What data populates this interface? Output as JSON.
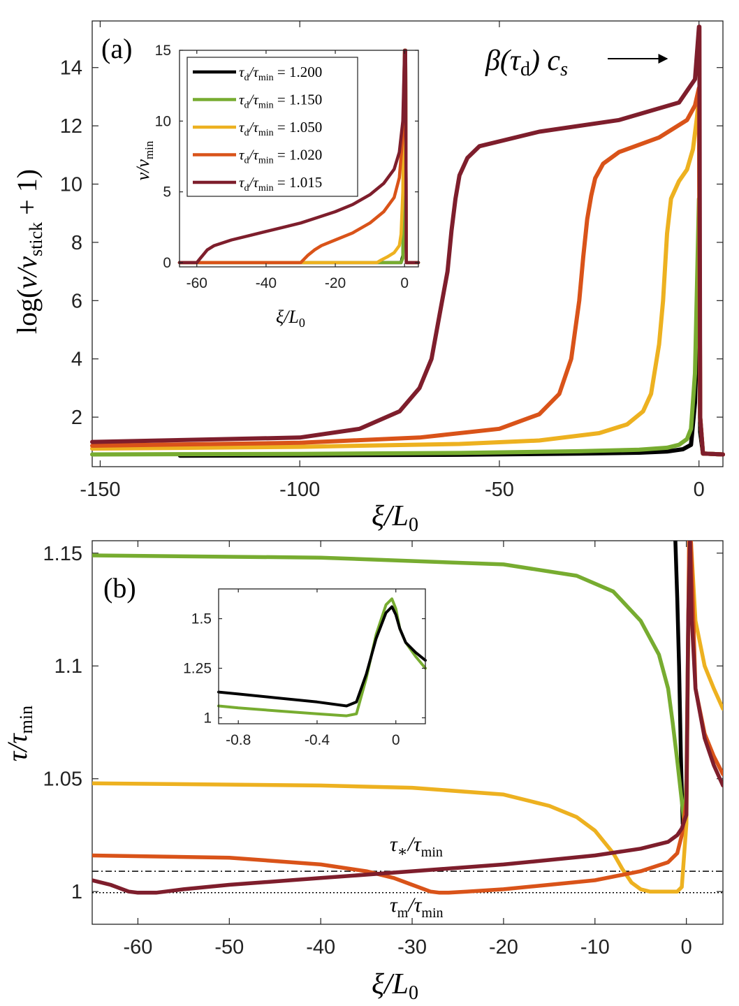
{
  "colors": {
    "t1200": "#000000",
    "t1150": "#77ac30",
    "t1050": "#edb120",
    "t1020": "#d95319",
    "t1015": "#7e1e2c",
    "axis": "#222222"
  },
  "chart_data": [
    {
      "id": "panel-a",
      "type": "line",
      "panel_label": "(a)",
      "xlabel": "ξ/L₀",
      "ylabel": "log(v/v_stick + 1)",
      "xlim": [
        -152,
        6
      ],
      "ylim": [
        0.3,
        15.6
      ],
      "xticks": [
        -150,
        -100,
        -50,
        0
      ],
      "xtick_labels": [
        "-150",
        "-100",
        "-50",
        "0"
      ],
      "yticks": [
        2,
        4,
        6,
        8,
        10,
        12,
        14
      ],
      "ytick_labels": [
        "2",
        "4",
        "6",
        "8",
        "10",
        "12",
        "14"
      ],
      "annotation": "β(τd) cs →",
      "series": [
        {
          "name": "τd/τmin = 1.200",
          "color_key": "t1200",
          "x": [
            -130,
            -100,
            -60,
            -30,
            -15,
            -8,
            -4,
            -2,
            -1,
            -0.5,
            0,
            0.3,
            1,
            6
          ],
          "y": [
            0.68,
            0.69,
            0.71,
            0.75,
            0.78,
            0.82,
            0.9,
            1.05,
            2.5,
            5,
            7.5,
            1.5,
            0.75,
            0.72
          ]
        },
        {
          "name": "τd/τmin = 1.150",
          "color_key": "t1150",
          "x": [
            -152,
            -100,
            -60,
            -30,
            -15,
            -8,
            -5,
            -3,
            -2,
            -1,
            -0.5,
            0,
            0.3,
            1,
            6
          ],
          "y": [
            0.72,
            0.74,
            0.77,
            0.83,
            0.88,
            0.95,
            1.05,
            1.25,
            1.6,
            3.5,
            6.5,
            9.5,
            2,
            0.75,
            0.72
          ]
        },
        {
          "name": "τd/τmin = 1.050",
          "color_key": "t1050",
          "x": [
            -152,
            -100,
            -60,
            -40,
            -25,
            -18,
            -14,
            -12,
            -10,
            -9,
            -8,
            -7,
            -5,
            -3,
            -1.5,
            -0.5,
            0,
            0.3,
            1,
            6
          ],
          "y": [
            0.92,
            0.98,
            1.08,
            1.2,
            1.45,
            1.75,
            2.2,
            2.8,
            4.5,
            6,
            8.3,
            9.5,
            10.1,
            10.5,
            11.2,
            12.3,
            13.0,
            2,
            0.75,
            0.72
          ]
        },
        {
          "name": "τd/τmin = 1.020",
          "color_key": "t1020",
          "x": [
            -152,
            -100,
            -70,
            -50,
            -40,
            -35,
            -32,
            -30,
            -29,
            -28,
            -27,
            -26,
            -24,
            -20,
            -10,
            -3,
            -1,
            0,
            0.3,
            1,
            6
          ],
          "y": [
            1.02,
            1.12,
            1.3,
            1.6,
            2.1,
            2.8,
            4,
            6,
            7.5,
            8.8,
            9.6,
            10.2,
            10.7,
            11.1,
            11.6,
            12.2,
            12.7,
            13.3,
            2,
            0.75,
            0.72
          ]
        },
        {
          "name": "τd/τmin = 1.015",
          "color_key": "t1015",
          "x": [
            -152,
            -100,
            -85,
            -75,
            -70,
            -67,
            -65,
            -63,
            -62,
            -61,
            -60,
            -58,
            -55,
            -40,
            -20,
            -5,
            -1,
            0,
            0.1,
            0.3,
            1,
            6
          ],
          "y": [
            1.15,
            1.3,
            1.6,
            2.2,
            3,
            4,
            5.5,
            7,
            8.4,
            9.5,
            10.3,
            10.9,
            11.3,
            11.8,
            12.2,
            12.8,
            13.6,
            15.4,
            15.4,
            2,
            0.75,
            0.72
          ]
        }
      ]
    },
    {
      "id": "panel-a-inset",
      "type": "line",
      "xlabel": "ξ/L₀",
      "ylabel": "v/v_min",
      "xlim": [
        -65,
        4
      ],
      "ylim": [
        -0.3,
        15
      ],
      "xticks": [
        -60,
        -40,
        -20,
        0
      ],
      "xtick_labels": [
        "-60",
        "-40",
        "-20",
        "0"
      ],
      "yticks": [
        0,
        5,
        10,
        15
      ],
      "ytick_labels": [
        "0",
        "5",
        "10",
        "15"
      ],
      "legend_position": "top-left",
      "legend": [
        "τd/τmin = 1.200",
        "τd/τmin = 1.150",
        "τd/τmin = 1.050",
        "τd/τmin = 1.020",
        "τd/τmin = 1.015"
      ],
      "series": [
        {
          "name": "τd/τmin = 1.200",
          "color_key": "t1200",
          "x": [
            -65,
            -1,
            -0.5,
            -0.2,
            0,
            0.3,
            0.5,
            4
          ],
          "y": [
            0,
            0,
            0.5,
            3,
            15,
            15,
            0,
            0
          ]
        },
        {
          "name": "τd/τmin = 1.150",
          "color_key": "t1150",
          "x": [
            -65,
            -1,
            -0.5,
            0,
            0.3,
            0.5,
            4
          ],
          "y": [
            0,
            0,
            0.3,
            15,
            15,
            0,
            0
          ]
        },
        {
          "name": "τd/τmin = 1.050",
          "color_key": "t1050",
          "x": [
            -65,
            -8,
            -7,
            -5,
            -3,
            -1.5,
            -1,
            -0.5,
            0,
            0.3,
            0.5,
            4
          ],
          "y": [
            0,
            0,
            0.15,
            0.4,
            0.7,
            1.2,
            2,
            5,
            15,
            15,
            0,
            0
          ]
        },
        {
          "name": "τd/τmin = 1.020",
          "color_key": "t1020",
          "x": [
            -65,
            -30,
            -28,
            -26,
            -24,
            -20,
            -15,
            -10,
            -6,
            -3,
            -1.5,
            -0.5,
            0,
            0.3,
            0.5,
            4
          ],
          "y": [
            0,
            0,
            0.5,
            0.9,
            1.2,
            1.6,
            2.1,
            2.8,
            3.6,
            4.6,
            6,
            9,
            15,
            15,
            0,
            0
          ]
        },
        {
          "name": "τd/τmin = 1.015",
          "color_key": "t1015",
          "x": [
            -65,
            -60,
            -59,
            -58,
            -57,
            -55,
            -50,
            -45,
            -40,
            -35,
            -30,
            -25,
            -20,
            -15,
            -10,
            -6,
            -3,
            -1.5,
            -0.5,
            0,
            0.3,
            0.5,
            4
          ],
          "y": [
            0,
            0,
            0.3,
            0.6,
            0.9,
            1.2,
            1.6,
            1.9,
            2.2,
            2.5,
            2.8,
            3.2,
            3.6,
            4.1,
            4.8,
            5.6,
            6.6,
            7.8,
            10,
            15,
            15,
            0,
            0
          ]
        }
      ]
    },
    {
      "id": "panel-b",
      "type": "line",
      "panel_label": "(b)",
      "xlabel": "ξ/L₀",
      "ylabel": "τ/τmin",
      "xlim": [
        -65,
        4
      ],
      "ylim": [
        0.9855,
        1.1555
      ],
      "xticks": [
        -60,
        -50,
        -40,
        -30,
        -20,
        -10,
        0
      ],
      "xtick_labels": [
        "-60",
        "-50",
        "-40",
        "-30",
        "-20",
        "-10",
        "0"
      ],
      "yticks": [
        1,
        1.05,
        1.1,
        1.15
      ],
      "ytick_labels": [
        "1",
        "1.05",
        "1.1",
        "1.15"
      ],
      "reference_lines": [
        {
          "label": "τ*/τmin",
          "y": 1.009,
          "style": "dash-dot"
        },
        {
          "label": "τm/τmin",
          "y": 0.9995,
          "style": "dotted"
        }
      ],
      "series": [
        {
          "name": "τd/τmin = 1.200",
          "color_key": "t1200",
          "x": [
            -1.2,
            -1,
            -0.8,
            -0.6,
            -0.4
          ],
          "y": [
            1.1555,
            1.13,
            1.1,
            1.06,
            1.03
          ]
        },
        {
          "name": "τd/τmin = 1.150",
          "color_key": "t1150",
          "x": [
            -65,
            -40,
            -20,
            -12,
            -8,
            -5,
            -3,
            -2,
            -1.5,
            -1,
            -0.5,
            -0.2,
            0,
            0.2,
            0.4
          ],
          "y": [
            1.149,
            1.148,
            1.145,
            1.14,
            1.133,
            1.12,
            1.105,
            1.09,
            1.075,
            1.058,
            1.04,
            1.03,
            1.05,
            1.12,
            1.1555
          ]
        },
        {
          "name": "τd/τmin = 1.050",
          "color_key": "t1050",
          "x": [
            -65,
            -40,
            -30,
            -20,
            -15,
            -12,
            -10,
            -8,
            -7,
            -6,
            -5,
            -4,
            -3,
            -2,
            -1,
            -0.5,
            0,
            0.3,
            0.5,
            1,
            2,
            3,
            4
          ],
          "y": [
            1.048,
            1.047,
            1.046,
            1.043,
            1.038,
            1.033,
            1.027,
            1.017,
            1.01,
            1.004,
            1.001,
            1.0,
            1.0,
            1.0,
            1.0,
            1.002,
            1.03,
            1.1555,
            1.1555,
            1.12,
            1.1,
            1.09,
            1.081
          ]
        },
        {
          "name": "τd/τmin = 1.020",
          "color_key": "t1020",
          "x": [
            -65,
            -50,
            -40,
            -35,
            -32,
            -30,
            -28,
            -27,
            -26,
            -24,
            -20,
            -15,
            -10,
            -5,
            -2,
            -1,
            -0.5,
            0,
            0.3,
            0.5,
            1,
            2,
            3,
            4
          ],
          "y": [
            1.016,
            1.015,
            1.012,
            1.009,
            1.006,
            1.003,
            1.0,
            0.9995,
            0.9995,
            1.0,
            1.001,
            1.003,
            1.005,
            1.009,
            1.013,
            1.017,
            1.025,
            1.04,
            1.1555,
            1.1555,
            1.09,
            1.07,
            1.06,
            1.052
          ]
        },
        {
          "name": "τd/τmin = 1.015",
          "color_key": "t1015",
          "x": [
            -65,
            -63,
            -61,
            -60,
            -59,
            -58,
            -57,
            -55,
            -50,
            -40,
            -30,
            -20,
            -10,
            -5,
            -2,
            -1,
            -0.5,
            0,
            0.2,
            0.4,
            0.6,
            1,
            2,
            3,
            4
          ],
          "y": [
            1.005,
            1.003,
            1.0,
            0.9995,
            0.9995,
            0.9995,
            1.0,
            1.001,
            1.003,
            1.006,
            1.009,
            1.012,
            1.016,
            1.019,
            1.022,
            1.025,
            1.028,
            1.034,
            1.12,
            1.1555,
            1.12,
            1.09,
            1.068,
            1.056,
            1.047
          ]
        }
      ]
    },
    {
      "id": "panel-b-inset",
      "type": "line",
      "xlabel": "",
      "ylabel": "",
      "xlim": [
        -0.9,
        0.15
      ],
      "ylim": [
        0.97,
        1.65
      ],
      "xticks": [
        -0.8,
        -0.4,
        0
      ],
      "xtick_labels": [
        "-0.8",
        "-0.4",
        "0"
      ],
      "yticks": [
        1,
        1.25,
        1.5
      ],
      "ytick_labels": [
        "1",
        "1.25",
        "1.5"
      ],
      "series": [
        {
          "name": "τd/τmin = 1.150",
          "color_key": "t1150",
          "x": [
            -0.9,
            -0.8,
            -0.6,
            -0.4,
            -0.25,
            -0.2,
            -0.15,
            -0.1,
            -0.05,
            -0.02,
            0,
            0.02,
            0.05,
            0.1,
            0.15
          ],
          "y": [
            1.06,
            1.05,
            1.035,
            1.02,
            1.01,
            1.02,
            1.2,
            1.42,
            1.57,
            1.6,
            1.55,
            1.45,
            1.38,
            1.31,
            1.25
          ]
        },
        {
          "name": "τd/τmin = 1.200",
          "color_key": "t1200",
          "x": [
            -0.9,
            -0.8,
            -0.6,
            -0.4,
            -0.25,
            -0.2,
            -0.15,
            -0.1,
            -0.05,
            -0.02,
            0,
            0.02,
            0.05,
            0.1,
            0.15
          ],
          "y": [
            1.13,
            1.12,
            1.1,
            1.08,
            1.06,
            1.08,
            1.22,
            1.4,
            1.53,
            1.56,
            1.52,
            1.45,
            1.38,
            1.33,
            1.29
          ]
        }
      ]
    }
  ]
}
